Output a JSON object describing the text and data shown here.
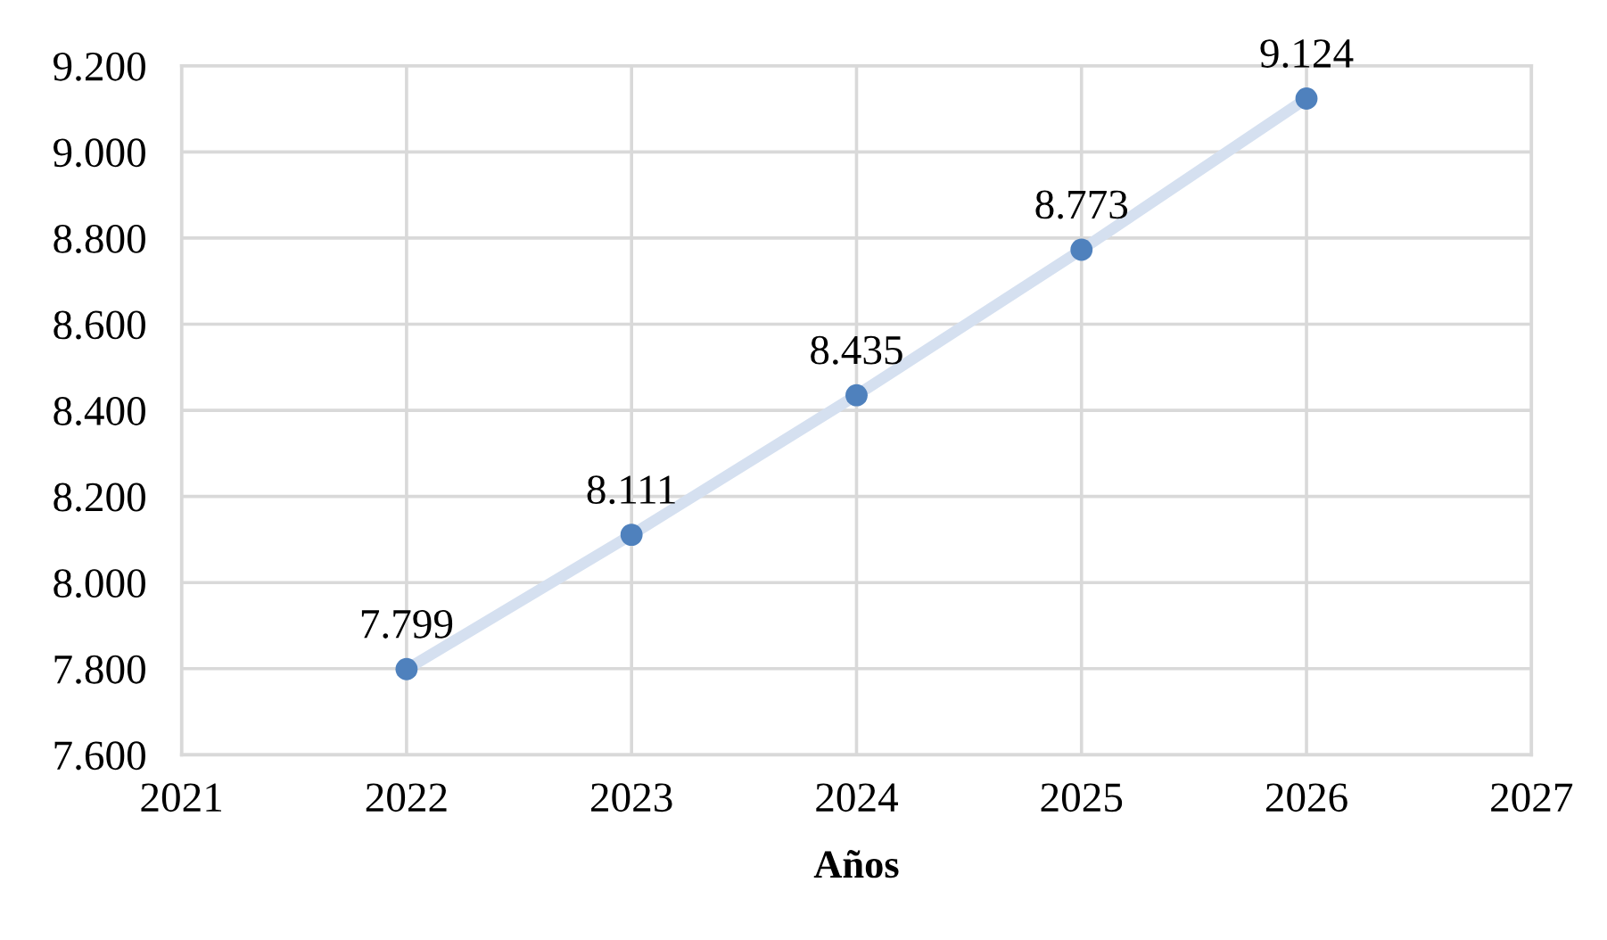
{
  "chart_data": {
    "type": "line",
    "xlabel": "Años",
    "x": [
      2022,
      2023,
      2024,
      2025,
      2026
    ],
    "xlim": [
      2021,
      2027
    ],
    "xticks": [
      2021,
      2022,
      2023,
      2024,
      2025,
      2026,
      2027
    ],
    "ylim": [
      7600,
      9200
    ],
    "yticks": [
      {
        "value": 7600,
        "label": "7.600"
      },
      {
        "value": 7800,
        "label": "7.800"
      },
      {
        "value": 8000,
        "label": "8.000"
      },
      {
        "value": 8200,
        "label": "8.200"
      },
      {
        "value": 8400,
        "label": "8.400"
      },
      {
        "value": 8600,
        "label": "8.600"
      },
      {
        "value": 8800,
        "label": "8.800"
      },
      {
        "value": 9000,
        "label": "9.000"
      },
      {
        "value": 9200,
        "label": "9.200"
      }
    ],
    "grid": true,
    "series": [
      {
        "color": "#d5e0f0",
        "marker": "none",
        "line_style": "solid",
        "values": [
          7799,
          8111,
          8435,
          8773,
          9124
        ]
      },
      {
        "type": "scatter",
        "color": "#4f81bd",
        "marker": "circle",
        "values": [
          7799,
          8111,
          8435,
          8773,
          9124
        ],
        "value_labels": [
          "7.799",
          "8.111",
          "8.435",
          "8.773",
          "9.124"
        ]
      }
    ]
  }
}
